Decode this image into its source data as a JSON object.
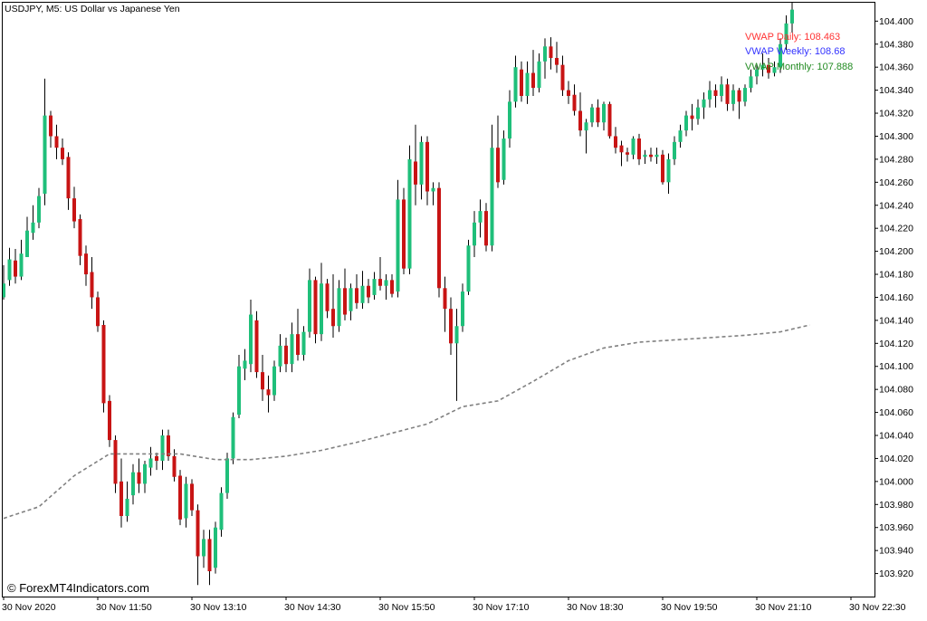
{
  "header": {
    "symbol_title": "USDJPY, M5:  US Dollar vs Japanese Yen"
  },
  "watermark": "© ForexMT4Indicators.com",
  "vwap_labels": [
    {
      "text": "VWAP Daily: 108.463",
      "color": "#ff3333"
    },
    {
      "text": "VWAP Weekly: 108.68",
      "color": "#3333ff"
    },
    {
      "text": "VWAP Monthly: 107.888",
      "color": "#228b22"
    }
  ],
  "colors": {
    "bull": "#1fbf7a",
    "bear": "#c81414",
    "wick": "#000000",
    "vwap_line": "#808080",
    "axis": "#000000",
    "background": "#ffffff"
  },
  "chart_data": {
    "type": "candlestick",
    "ylim": [
      103.9,
      104.416
    ],
    "y_ticks": [
      "104.400",
      "104.380",
      "104.360",
      "104.340",
      "104.320",
      "104.300",
      "104.280",
      "104.260",
      "104.240",
      "104.220",
      "104.200",
      "104.180",
      "104.160",
      "104.140",
      "104.120",
      "104.100",
      "104.080",
      "104.060",
      "104.040",
      "104.020",
      "104.000",
      "103.980",
      "103.960",
      "103.940",
      "103.920"
    ],
    "x_labels": [
      "30 Nov 2020",
      "30 Nov 11:50",
      "30 Nov 13:10",
      "30 Nov 14:30",
      "30 Nov 15:50",
      "30 Nov 17:10",
      "30 Nov 18:30",
      "30 Nov 19:50",
      "30 Nov 21:10",
      "30 Nov 22:30"
    ],
    "candles_per_label": 16,
    "ohlc": [
      [
        104.16,
        104.188,
        104.158,
        104.172
      ],
      [
        104.175,
        104.203,
        104.17,
        104.193
      ],
      [
        104.192,
        104.202,
        104.172,
        104.178
      ],
      [
        104.178,
        104.21,
        104.175,
        104.198
      ],
      [
        104.195,
        104.23,
        104.195,
        104.218
      ],
      [
        104.216,
        104.24,
        104.21,
        104.225
      ],
      [
        104.225,
        104.255,
        104.22,
        104.248
      ],
      [
        104.25,
        104.35,
        104.24,
        104.318
      ],
      [
        104.318,
        104.322,
        104.29,
        104.3
      ],
      [
        104.3,
        104.31,
        104.28,
        104.29
      ],
      [
        104.29,
        104.298,
        104.275,
        104.28
      ],
      [
        104.282,
        104.286,
        104.236,
        104.246
      ],
      [
        104.246,
        104.256,
        104.22,
        104.226
      ],
      [
        104.228,
        104.232,
        104.188,
        104.196
      ],
      [
        104.198,
        104.205,
        104.17,
        104.18
      ],
      [
        104.182,
        104.195,
        104.15,
        104.16
      ],
      [
        104.16,
        104.165,
        104.13,
        104.135
      ],
      [
        104.136,
        104.14,
        104.06,
        104.068
      ],
      [
        104.07,
        104.075,
        104.03,
        104.036
      ],
      [
        104.036,
        104.04,
        103.99,
        103.998
      ],
      [
        104.0,
        104.02,
        103.96,
        103.97
      ],
      [
        103.97,
        104.0,
        103.965,
        103.985
      ],
      [
        103.988,
        104.015,
        103.98,
        104.008
      ],
      [
        104.008,
        104.02,
        103.99,
        103.998
      ],
      [
        103.998,
        104.018,
        103.99,
        104.015
      ],
      [
        104.012,
        104.03,
        104.005,
        104.02
      ],
      [
        104.022,
        104.025,
        104.01,
        104.018
      ],
      [
        104.018,
        104.045,
        104.01,
        104.04
      ],
      [
        104.04,
        104.045,
        104.018,
        104.022
      ],
      [
        104.022,
        104.028,
        104.0,
        104.004
      ],
      [
        104.005,
        104.01,
        103.962,
        103.967
      ],
      [
        103.968,
        104.004,
        103.96,
        103.998
      ],
      [
        103.998,
        104.002,
        103.97,
        103.975
      ],
      [
        103.975,
        103.98,
        103.91,
        103.935
      ],
      [
        103.935,
        103.958,
        103.925,
        103.95
      ],
      [
        103.95,
        103.958,
        103.91,
        103.922
      ],
      [
        103.925,
        103.965,
        103.92,
        103.96
      ],
      [
        103.958,
        103.995,
        103.952,
        103.99
      ],
      [
        103.99,
        104.025,
        103.985,
        104.02
      ],
      [
        104.02,
        104.06,
        104.015,
        104.056
      ],
      [
        104.058,
        104.11,
        104.055,
        104.1
      ],
      [
        104.098,
        104.115,
        104.088,
        104.105
      ],
      [
        104.102,
        104.158,
        104.095,
        104.145
      ],
      [
        104.14,
        104.148,
        104.09,
        104.095
      ],
      [
        104.095,
        104.11,
        104.07,
        104.08
      ],
      [
        104.08,
        104.092,
        104.06,
        104.075
      ],
      [
        104.075,
        104.105,
        104.07,
        104.1
      ],
      [
        104.1,
        104.128,
        104.095,
        104.118
      ],
      [
        104.118,
        104.125,
        104.095,
        104.102
      ],
      [
        104.102,
        104.138,
        104.095,
        104.128
      ],
      [
        104.128,
        104.15,
        104.105,
        104.11
      ],
      [
        104.11,
        104.135,
        104.105,
        104.13
      ],
      [
        104.13,
        104.185,
        104.125,
        104.175
      ],
      [
        104.175,
        104.178,
        104.12,
        104.128
      ],
      [
        104.128,
        104.19,
        104.122,
        104.172
      ],
      [
        104.172,
        104.176,
        104.142,
        104.148
      ],
      [
        104.15,
        104.18,
        104.125,
        104.135
      ],
      [
        104.135,
        104.175,
        104.13,
        104.168
      ],
      [
        104.168,
        104.185,
        104.14,
        104.145
      ],
      [
        104.148,
        104.172,
        104.14,
        104.168
      ],
      [
        104.168,
        104.18,
        104.15,
        104.155
      ],
      [
        104.155,
        104.183,
        104.15,
        104.17
      ],
      [
        104.17,
        104.176,
        104.155,
        104.16
      ],
      [
        104.162,
        104.182,
        104.158,
        104.176
      ],
      [
        104.176,
        104.195,
        104.166,
        104.17
      ],
      [
        104.17,
        104.18,
        104.158,
        104.175
      ],
      [
        104.175,
        104.18,
        104.16,
        104.163
      ],
      [
        104.165,
        104.262,
        104.16,
        104.245
      ],
      [
        104.245,
        104.255,
        104.18,
        104.185
      ],
      [
        104.185,
        104.292,
        104.18,
        104.28
      ],
      [
        104.278,
        104.31,
        104.24,
        104.258
      ],
      [
        104.258,
        104.3,
        104.245,
        104.295
      ],
      [
        104.295,
        104.3,
        104.24,
        104.252
      ],
      [
        104.252,
        104.26,
        104.24,
        104.255
      ],
      [
        104.255,
        104.26,
        104.16,
        104.168
      ],
      [
        104.168,
        104.178,
        104.13,
        104.15
      ],
      [
        104.15,
        104.16,
        104.11,
        104.12
      ],
      [
        104.12,
        104.15,
        104.07,
        104.135
      ],
      [
        104.135,
        104.172,
        104.13,
        104.165
      ],
      [
        104.165,
        104.21,
        104.162,
        104.205
      ],
      [
        104.205,
        104.235,
        104.195,
        104.225
      ],
      [
        104.225,
        104.245,
        104.212,
        104.235
      ],
      [
        104.235,
        104.242,
        104.2,
        104.205
      ],
      [
        104.205,
        104.31,
        104.2,
        104.29
      ],
      [
        104.29,
        104.318,
        104.255,
        104.26
      ],
      [
        104.262,
        104.305,
        104.258,
        104.298
      ],
      [
        104.298,
        104.34,
        104.29,
        104.33
      ],
      [
        104.33,
        104.37,
        104.325,
        104.36
      ],
      [
        104.358,
        104.365,
        104.33,
        104.335
      ],
      [
        104.335,
        104.365,
        104.328,
        104.355
      ],
      [
        104.355,
        104.375,
        104.335,
        104.342
      ],
      [
        104.342,
        104.372,
        104.338,
        104.365
      ],
      [
        104.365,
        104.385,
        104.35,
        104.378
      ],
      [
        104.378,
        104.386,
        104.358,
        104.368
      ],
      [
        104.368,
        104.382,
        104.355,
        104.362
      ],
      [
        104.362,
        104.37,
        104.335,
        104.34
      ],
      [
        104.34,
        104.348,
        104.328,
        104.335
      ],
      [
        104.336,
        104.345,
        104.318,
        104.322
      ],
      [
        104.322,
        104.338,
        104.3,
        104.305
      ],
      [
        104.305,
        104.315,
        104.285,
        104.312
      ],
      [
        104.312,
        104.328,
        104.308,
        104.325
      ],
      [
        104.325,
        104.332,
        104.308,
        104.312
      ],
      [
        104.312,
        104.33,
        104.305,
        104.328
      ],
      [
        104.328,
        104.33,
        104.298,
        104.3
      ],
      [
        104.3,
        104.308,
        104.285,
        104.29
      ],
      [
        104.292,
        104.296,
        104.274,
        104.286
      ],
      [
        104.286,
        104.29,
        104.278,
        104.284
      ],
      [
        104.284,
        104.3,
        104.28,
        104.298
      ],
      [
        104.298,
        104.302,
        104.275,
        104.28
      ],
      [
        104.282,
        104.288,
        104.276,
        104.284
      ],
      [
        104.284,
        104.29,
        104.278,
        104.282
      ],
      [
        104.282,
        104.29,
        104.276,
        104.284
      ],
      [
        104.284,
        104.288,
        104.258,
        104.26
      ],
      [
        104.26,
        104.285,
        104.25,
        104.28
      ],
      [
        104.28,
        104.3,
        104.275,
        104.295
      ],
      [
        104.295,
        104.31,
        104.29,
        104.305
      ],
      [
        104.305,
        104.322,
        104.3,
        104.318
      ],
      [
        104.318,
        104.328,
        104.305,
        104.315
      ],
      [
        104.315,
        104.332,
        104.31,
        104.325
      ],
      [
        104.325,
        104.338,
        104.315,
        104.332
      ],
      [
        104.332,
        104.348,
        104.325,
        104.34
      ],
      [
        104.34,
        104.345,
        104.325,
        104.335
      ],
      [
        104.335,
        104.352,
        104.33,
        104.345
      ],
      [
        104.345,
        104.35,
        104.322,
        104.328
      ],
      [
        104.328,
        104.345,
        104.322,
        104.34
      ],
      [
        104.34,
        104.342,
        104.315,
        104.33
      ],
      [
        104.33,
        104.345,
        104.326,
        104.342
      ],
      [
        104.342,
        104.358,
        104.338,
        104.352
      ],
      [
        104.352,
        104.362,
        104.345,
        104.358
      ],
      [
        104.358,
        104.372,
        104.352,
        104.362
      ],
      [
        104.362,
        104.368,
        104.35,
        104.355
      ],
      [
        104.355,
        104.365,
        104.352,
        104.36
      ],
      [
        104.36,
        104.385,
        104.355,
        104.38
      ],
      [
        104.38,
        104.405,
        104.375,
        104.398
      ],
      [
        104.398,
        104.416,
        104.39,
        104.41
      ]
    ],
    "vwap_line": [
      [
        0,
        103.968
      ],
      [
        6,
        103.978
      ],
      [
        12,
        104.005
      ],
      [
        18,
        104.024
      ],
      [
        24,
        104.024
      ],
      [
        30,
        104.024
      ],
      [
        36,
        104.019
      ],
      [
        42,
        104.019
      ],
      [
        48,
        104.022
      ],
      [
        54,
        104.027
      ],
      [
        60,
        104.034
      ],
      [
        66,
        104.042
      ],
      [
        72,
        104.05
      ],
      [
        78,
        104.065
      ],
      [
        84,
        104.07
      ],
      [
        90,
        104.087
      ],
      [
        96,
        104.105
      ],
      [
        102,
        104.116
      ],
      [
        108,
        104.121
      ],
      [
        114,
        104.123
      ],
      [
        120,
        104.125
      ],
      [
        126,
        104.127
      ],
      [
        132,
        104.13
      ],
      [
        137,
        104.136
      ]
    ]
  }
}
